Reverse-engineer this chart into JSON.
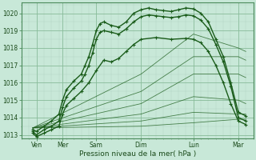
{
  "xlabel": "Pression niveau de la mer( hPa )",
  "bg_color": "#c8e8d8",
  "plot_bg_color": "#c8e8d8",
  "grid_major_color": "#88bb99",
  "grid_minor_color": "#aaccbb",
  "line_color_dark": "#1a5c1a",
  "line_color_med": "#2a7a2a",
  "tick_label_color": "#1a4a1a",
  "ylim": [
    1012.8,
    1020.6
  ],
  "xlim": [
    0,
    6.2
  ],
  "xtick_labels": [
    "Ven",
    "Mer",
    "Sam",
    "Dim",
    "Lun",
    "Mar"
  ],
  "xtick_positions": [
    0.4,
    1.1,
    2.0,
    3.2,
    4.6,
    5.8
  ],
  "ytick_positions": [
    1013,
    1014,
    1015,
    1016,
    1017,
    1018,
    1019,
    1020
  ],
  "lines_marker": [
    {
      "x": [
        0.3,
        0.4,
        0.6,
        0.8,
        1.0,
        1.1,
        1.2,
        1.4,
        1.6,
        1.7,
        1.8,
        1.9,
        2.0,
        2.1,
        2.2,
        2.4,
        2.6,
        2.8,
        3.0,
        3.2,
        3.4,
        3.6,
        3.8,
        4.0,
        4.2,
        4.4,
        4.6,
        4.8,
        5.0,
        5.2,
        5.4,
        5.6,
        5.8,
        6.0
      ],
      "y": [
        1013.3,
        1013.2,
        1013.5,
        1013.8,
        1014.2,
        1015.0,
        1015.6,
        1016.1,
        1016.5,
        1017.0,
        1017.5,
        1018.2,
        1019.0,
        1019.4,
        1019.5,
        1019.3,
        1019.2,
        1019.5,
        1020.0,
        1020.2,
        1020.3,
        1020.2,
        1020.15,
        1020.1,
        1020.2,
        1020.3,
        1020.25,
        1020.0,
        1019.5,
        1018.5,
        1017.5,
        1016.0,
        1014.3,
        1014.1
      ]
    },
    {
      "x": [
        0.3,
        0.4,
        0.6,
        0.8,
        1.0,
        1.1,
        1.2,
        1.4,
        1.6,
        1.7,
        1.8,
        1.9,
        2.0,
        2.1,
        2.2,
        2.4,
        2.6,
        2.8,
        3.0,
        3.2,
        3.4,
        3.6,
        3.8,
        4.0,
        4.2,
        4.4,
        4.6,
        4.8,
        5.0,
        5.2,
        5.4,
        5.6,
        5.8,
        6.0
      ],
      "y": [
        1013.2,
        1013.0,
        1013.3,
        1013.5,
        1013.8,
        1014.6,
        1015.2,
        1015.7,
        1016.1,
        1016.5,
        1017.0,
        1017.7,
        1018.5,
        1018.9,
        1019.0,
        1018.9,
        1018.8,
        1019.1,
        1019.5,
        1019.8,
        1019.9,
        1019.85,
        1019.8,
        1019.75,
        1019.8,
        1019.9,
        1019.85,
        1019.6,
        1019.1,
        1018.2,
        1017.2,
        1015.8,
        1014.0,
        1013.8
      ]
    },
    {
      "x": [
        0.3,
        0.4,
        0.6,
        0.8,
        1.0,
        1.1,
        1.2,
        1.4,
        1.6,
        1.8,
        2.0,
        2.2,
        2.4,
        2.6,
        2.8,
        3.0,
        3.2,
        3.6,
        4.0,
        4.4,
        4.6,
        4.8,
        5.0,
        5.2,
        5.4,
        5.6,
        5.8,
        6.0
      ],
      "y": [
        1013.1,
        1012.9,
        1013.1,
        1013.3,
        1013.5,
        1014.2,
        1014.7,
        1015.1,
        1015.5,
        1016.0,
        1016.7,
        1017.3,
        1017.2,
        1017.4,
        1017.8,
        1018.2,
        1018.5,
        1018.6,
        1018.5,
        1018.55,
        1018.5,
        1018.3,
        1017.8,
        1017.0,
        1016.0,
        1014.8,
        1013.8,
        1013.6
      ]
    }
  ],
  "lines_thin": [
    {
      "x": [
        0.3,
        3.2,
        4.6,
        5.8,
        6.0
      ],
      "y": [
        1013.4,
        1016.5,
        1018.8,
        1018.0,
        1017.8
      ]
    },
    {
      "x": [
        0.3,
        3.2,
        4.6,
        5.8,
        6.0
      ],
      "y": [
        1013.4,
        1015.5,
        1017.5,
        1017.5,
        1017.3
      ]
    },
    {
      "x": [
        0.3,
        3.2,
        4.6,
        5.8,
        6.0
      ],
      "y": [
        1013.4,
        1014.8,
        1016.5,
        1016.5,
        1016.3
      ]
    },
    {
      "x": [
        0.3,
        3.2,
        4.6,
        5.8,
        6.0
      ],
      "y": [
        1013.4,
        1014.2,
        1015.2,
        1015.0,
        1014.8
      ]
    },
    {
      "x": [
        0.3,
        3.2,
        4.6,
        5.8,
        6.0
      ],
      "y": [
        1013.4,
        1013.8,
        1014.3,
        1014.2,
        1014.2
      ]
    },
    {
      "x": [
        0.3,
        3.2,
        4.6,
        5.8,
        6.0
      ],
      "y": [
        1013.4,
        1013.5,
        1013.7,
        1013.9,
        1013.9
      ]
    }
  ]
}
